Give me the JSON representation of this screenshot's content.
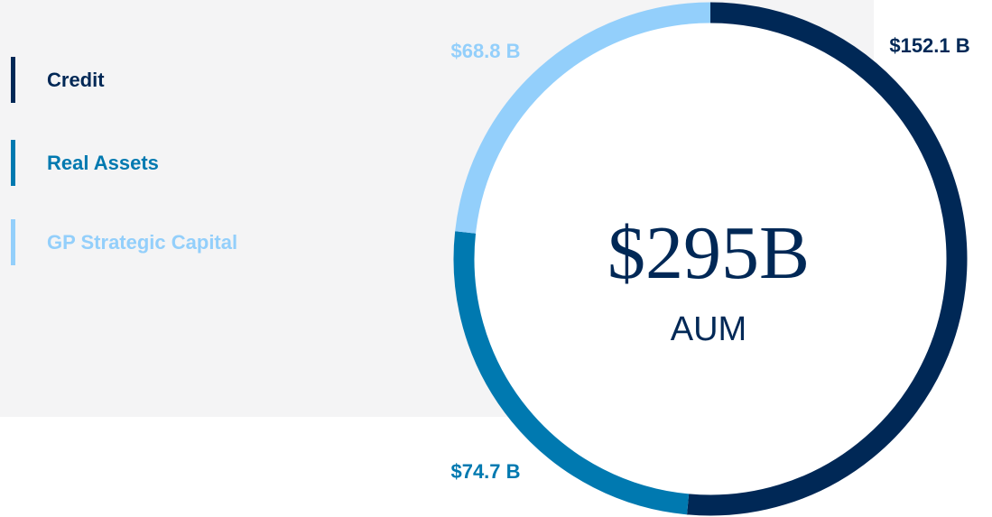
{
  "chart_data": {
    "type": "donut",
    "categories": [
      "Credit",
      "Real Assets",
      "GP Strategic Capital"
    ],
    "values": [
      152.1,
      74.7,
      68.8
    ],
    "value_labels": [
      "$152.1 B",
      "$74.7 B",
      "$68.8 B"
    ],
    "colors": [
      "#002856",
      "#0079b0",
      "#93cffb"
    ],
    "center_value": "$295B",
    "center_label": "AUM"
  }
}
